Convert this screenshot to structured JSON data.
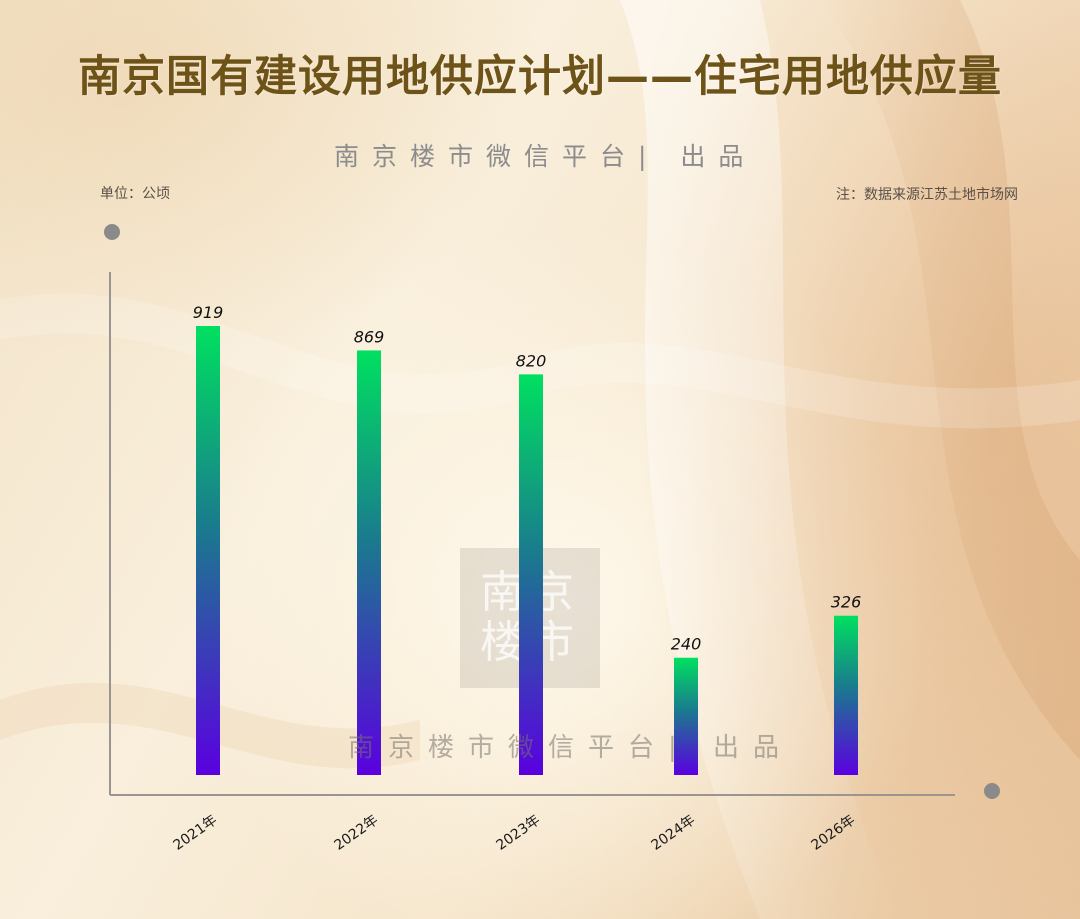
{
  "header": {
    "title": "南京国有建设用地供应计划——住宅用地供应量",
    "byline": "南京楼市微信平台| 出品",
    "unit": "单位：公顷",
    "note": "注：数据来源江苏土地市场网"
  },
  "watermark": {
    "line1": "南京",
    "line2": "楼市",
    "byline": "南京楼市微信平台| 出品"
  },
  "colors": {
    "title": "#6e5319",
    "bar_top": "#00e060",
    "bar_mid": "#1a7a8e",
    "bar_bottom": "#5a00e0",
    "axis": "#9a9590",
    "axis_dot": "#8a8a8a"
  },
  "chart_data": {
    "type": "bar",
    "title": "南京国有建设用地供应计划——住宅用地供应量",
    "ylabel": "单位：公顷",
    "xlabel": "",
    "categories": [
      "2021年",
      "2022年",
      "2023年",
      "2024年",
      "2026年"
    ],
    "values": [
      919,
      869,
      820,
      240,
      326
    ],
    "ylim": [
      0,
      919
    ],
    "grid": false,
    "legend": "none",
    "data_labels": true
  }
}
